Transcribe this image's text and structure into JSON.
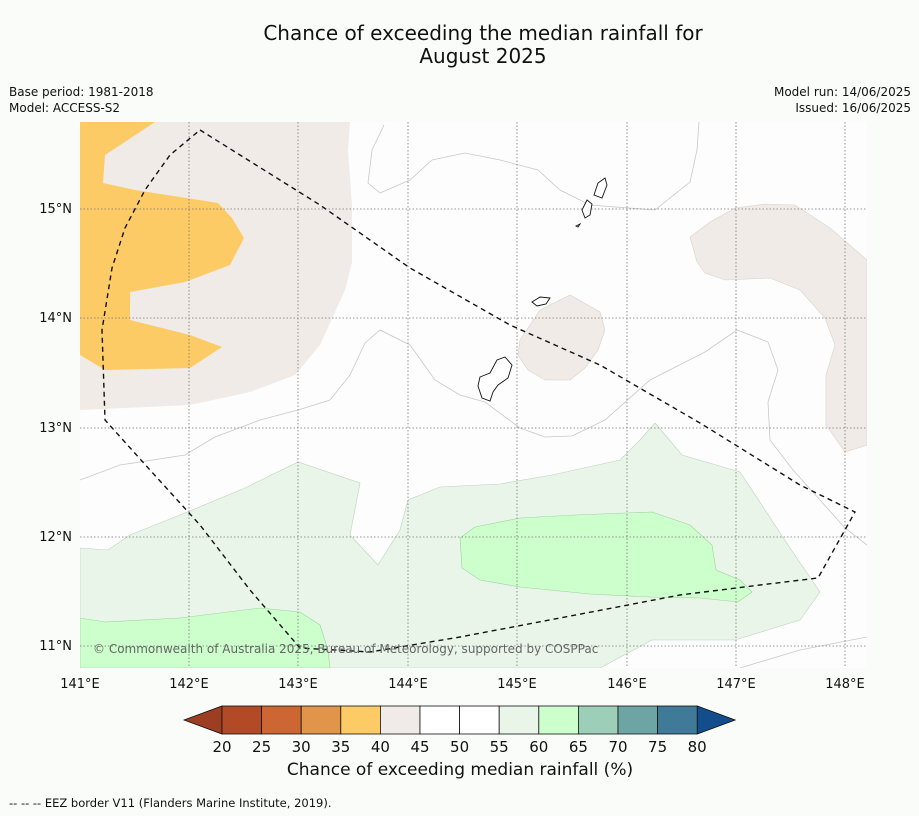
{
  "header": {
    "title_line1": "Chance of exceeding the median rainfall for",
    "title_line2": "August 2025",
    "base_period": "Base period: 1981-2018",
    "model": "Model: ACCESS-S2",
    "model_run": "Model run: 14/06/2025",
    "issued": "Issued: 16/06/2025"
  },
  "map": {
    "lat_labels": [
      "15°N",
      "14°N",
      "13°N",
      "12°N",
      "11°N"
    ],
    "lon_labels": [
      "141°E",
      "142°E",
      "143°E",
      "144°E",
      "145°E",
      "146°E",
      "147°E",
      "148°E"
    ],
    "copyright": "© Commonwealth of Australia 2025, Bureau of Meteorology, supported by COSPPac"
  },
  "colorbar": {
    "ticks": [
      "20",
      "25",
      "30",
      "35",
      "40",
      "45",
      "50",
      "55",
      "60",
      "65",
      "70",
      "75",
      "80"
    ],
    "colors": [
      "#b24a28",
      "#cc6633",
      "#e0954a",
      "#fccb65",
      "#f0ebe6",
      "#ffffff",
      "#ffffff",
      "#eaf5ea",
      "#ccffcc",
      "#9dcfb8",
      "#6da5a5",
      "#3f7a99"
    ],
    "under_color": "#9c3e22",
    "over_color": "#134e8c",
    "label": "Chance of exceeding median rainfall (%)"
  },
  "legend": {
    "eez": "--  --  -- EEZ border V11 (Flanders Marine Institute, 2019)."
  }
}
